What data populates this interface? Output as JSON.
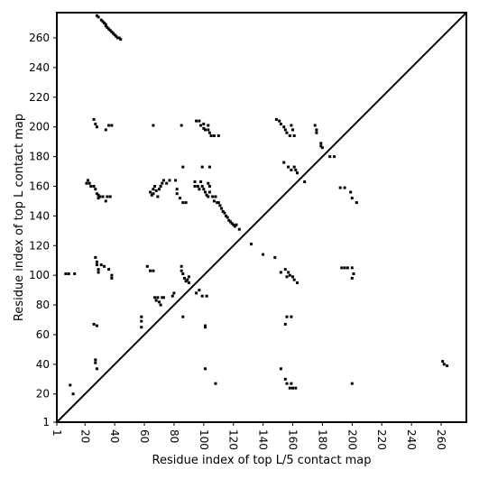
{
  "chart_data": {
    "type": "scatter",
    "title": "",
    "xlabel": "Residue index of top L/5 contact map",
    "ylabel": "Residue index of top L contact map",
    "xlim": [
      1,
      277
    ],
    "ylim": [
      1,
      277
    ],
    "xticks": [
      1,
      20,
      40,
      60,
      80,
      100,
      120,
      140,
      160,
      180,
      200,
      220,
      240,
      260
    ],
    "yticks": [
      1,
      20,
      40,
      60,
      80,
      100,
      120,
      140,
      160,
      180,
      200,
      220,
      240,
      260
    ],
    "xtick_labels": [
      "1",
      "20",
      "40",
      "60",
      "80",
      "100",
      "120",
      "140",
      "160",
      "180",
      "200",
      "220",
      "240",
      "260"
    ],
    "ytick_labels": [
      "1",
      "20",
      "40",
      "60",
      "80",
      "100",
      "120",
      "140",
      "160",
      "180",
      "200",
      "220",
      "240",
      "260"
    ],
    "xtick_rotation": -90,
    "grid": false,
    "diagonal_line": {
      "x": [
        1,
        277
      ],
      "y": [
        1,
        277
      ]
    },
    "marker_color": "#000000",
    "points": [
      [
        28,
        275
      ],
      [
        29,
        274
      ],
      [
        31,
        272
      ],
      [
        32,
        271
      ],
      [
        33,
        270
      ],
      [
        34,
        269
      ],
      [
        34,
        268
      ],
      [
        35,
        267
      ],
      [
        36,
        266
      ],
      [
        37,
        265
      ],
      [
        38,
        264
      ],
      [
        39,
        263
      ],
      [
        40,
        262
      ],
      [
        41,
        261
      ],
      [
        42,
        260
      ],
      [
        43,
        260
      ],
      [
        44,
        259
      ],
      [
        26,
        205
      ],
      [
        27,
        202
      ],
      [
        28,
        200
      ],
      [
        34,
        198
      ],
      [
        36,
        201
      ],
      [
        38,
        201
      ],
      [
        66,
        201
      ],
      [
        85,
        201
      ],
      [
        95,
        204
      ],
      [
        97,
        204
      ],
      [
        98,
        201
      ],
      [
        100,
        199
      ],
      [
        101,
        198
      ],
      [
        103,
        198
      ],
      [
        104,
        196
      ],
      [
        105,
        194
      ],
      [
        107,
        194
      ],
      [
        110,
        194
      ],
      [
        100,
        202
      ],
      [
        103,
        201
      ],
      [
        149,
        205
      ],
      [
        151,
        204
      ],
      [
        152,
        202
      ],
      [
        154,
        200
      ],
      [
        155,
        198
      ],
      [
        156,
        196
      ],
      [
        158,
        194
      ],
      [
        159,
        201
      ],
      [
        160,
        198
      ],
      [
        161,
        194
      ],
      [
        175,
        201
      ],
      [
        176,
        198
      ],
      [
        176,
        196
      ],
      [
        179,
        189
      ],
      [
        179,
        187
      ],
      [
        180,
        186
      ],
      [
        185,
        180
      ],
      [
        188,
        180
      ],
      [
        154,
        176
      ],
      [
        157,
        173
      ],
      [
        159,
        171
      ],
      [
        162,
        171
      ],
      [
        161,
        173
      ],
      [
        163,
        169
      ],
      [
        168,
        163
      ],
      [
        21,
        162
      ],
      [
        22,
        164
      ],
      [
        23,
        162
      ],
      [
        24,
        160
      ],
      [
        26,
        160
      ],
      [
        27,
        158
      ],
      [
        28,
        155
      ],
      [
        29,
        154
      ],
      [
        29,
        152
      ],
      [
        30,
        153
      ],
      [
        32,
        153
      ],
      [
        34,
        150
      ],
      [
        35,
        153
      ],
      [
        37,
        153
      ],
      [
        64,
        156
      ],
      [
        65,
        154
      ],
      [
        66,
        158
      ],
      [
        66,
        155
      ],
      [
        67,
        160
      ],
      [
        68,
        157
      ],
      [
        69,
        153
      ],
      [
        70,
        158
      ],
      [
        71,
        160
      ],
      [
        72,
        162
      ],
      [
        73,
        164
      ],
      [
        75,
        162
      ],
      [
        77,
        164
      ],
      [
        81,
        164
      ],
      [
        82,
        158
      ],
      [
        82,
        155
      ],
      [
        84,
        152
      ],
      [
        86,
        149
      ],
      [
        88,
        149
      ],
      [
        86,
        173
      ],
      [
        99,
        173
      ],
      [
        104,
        173
      ],
      [
        94,
        163
      ],
      [
        94,
        160
      ],
      [
        96,
        160
      ],
      [
        97,
        158
      ],
      [
        98,
        163
      ],
      [
        99,
        160
      ],
      [
        100,
        158
      ],
      [
        101,
        156
      ],
      [
        102,
        154
      ],
      [
        103,
        153
      ],
      [
        104,
        156
      ],
      [
        106,
        153
      ],
      [
        107,
        150
      ],
      [
        108,
        153
      ],
      [
        109,
        149
      ],
      [
        110,
        149
      ],
      [
        111,
        147
      ],
      [
        112,
        145
      ],
      [
        113,
        143
      ],
      [
        114,
        142
      ],
      [
        115,
        140
      ],
      [
        116,
        139
      ],
      [
        117,
        137
      ],
      [
        118,
        136
      ],
      [
        119,
        135
      ],
      [
        120,
        134
      ],
      [
        121,
        133
      ],
      [
        122,
        134
      ],
      [
        124,
        131
      ],
      [
        103,
        162
      ],
      [
        104,
        160
      ],
      [
        132,
        121
      ],
      [
        140,
        114
      ],
      [
        148,
        112
      ],
      [
        192,
        159
      ],
      [
        195,
        159
      ],
      [
        199,
        156
      ],
      [
        200,
        152
      ],
      [
        203,
        149
      ],
      [
        27,
        112
      ],
      [
        28,
        109
      ],
      [
        28,
        107
      ],
      [
        29,
        104
      ],
      [
        29,
        102
      ],
      [
        31,
        107
      ],
      [
        33,
        106
      ],
      [
        36,
        104
      ],
      [
        38,
        100
      ],
      [
        38,
        98
      ],
      [
        7,
        101
      ],
      [
        9,
        101
      ],
      [
        13,
        101
      ],
      [
        62,
        106
      ],
      [
        64,
        103
      ],
      [
        66,
        103
      ],
      [
        85,
        106
      ],
      [
        85,
        103
      ],
      [
        86,
        101
      ],
      [
        87,
        98
      ],
      [
        88,
        96
      ],
      [
        89,
        97
      ],
      [
        90,
        95
      ],
      [
        90,
        99
      ],
      [
        152,
        102
      ],
      [
        155,
        104
      ],
      [
        157,
        102
      ],
      [
        158,
        100
      ],
      [
        156,
        99
      ],
      [
        160,
        99
      ],
      [
        161,
        97
      ],
      [
        163,
        95
      ],
      [
        193,
        105
      ],
      [
        195,
        105
      ],
      [
        197,
        105
      ],
      [
        200,
        105
      ],
      [
        201,
        101
      ],
      [
        200,
        98
      ],
      [
        58,
        72
      ],
      [
        58,
        69
      ],
      [
        58,
        65
      ],
      [
        67,
        85
      ],
      [
        68,
        83
      ],
      [
        69,
        85
      ],
      [
        70,
        82
      ],
      [
        71,
        80
      ],
      [
        72,
        85
      ],
      [
        73,
        85
      ],
      [
        79,
        86
      ],
      [
        80,
        88
      ],
      [
        86,
        72
      ],
      [
        95,
        88
      ],
      [
        97,
        90
      ],
      [
        99,
        86
      ],
      [
        101,
        66
      ],
      [
        101,
        65
      ],
      [
        102,
        86
      ],
      [
        155,
        67
      ],
      [
        156,
        72
      ],
      [
        159,
        72
      ],
      [
        26,
        67
      ],
      [
        28,
        66
      ],
      [
        27,
        43
      ],
      [
        27,
        41
      ],
      [
        28,
        37
      ],
      [
        12,
        20
      ],
      [
        10,
        26
      ],
      [
        101,
        37
      ],
      [
        108,
        27
      ],
      [
        152,
        37
      ],
      [
        155,
        30
      ],
      [
        156,
        27
      ],
      [
        158,
        24
      ],
      [
        160,
        24
      ],
      [
        159,
        27
      ],
      [
        162,
        24
      ],
      [
        200,
        27
      ],
      [
        261,
        42
      ],
      [
        262,
        40
      ],
      [
        264,
        39
      ]
    ]
  }
}
